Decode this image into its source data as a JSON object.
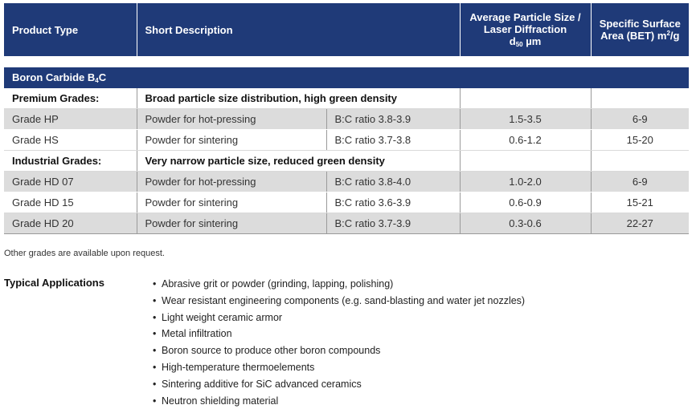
{
  "table": {
    "headers": {
      "product_type": "Product Type",
      "short_description": "Short Description",
      "avg_particle_line1": "Average Particle Size /",
      "avg_particle_line2": "Laser Diffraction",
      "avg_particle_d": "d",
      "avg_particle_sub": "50",
      "avg_particle_unit": " µm",
      "ssa_line1": "Specific Surface",
      "ssa_line2_prefix": "Area (BET) m",
      "ssa_sup": "2",
      "ssa_suffix": "/g"
    },
    "section": {
      "prefix": "Boron Carbide B",
      "sub": "4",
      "suffix": "C"
    },
    "groups": [
      {
        "name": "Premium Grades:",
        "description": "Broad particle size distribution, high green density",
        "rows": [
          {
            "grade": "Grade HP",
            "description": "Powder for hot-pressing",
            "ratio": "B:C ratio 3.8-3.9",
            "particle_size": "1.5-3.5",
            "surface_area": "6-9"
          },
          {
            "grade": "Grade HS",
            "description": "Powder for sintering",
            "ratio": "B:C ratio 3.7-3.8",
            "particle_size": "0.6-1.2",
            "surface_area": "15-20"
          }
        ]
      },
      {
        "name": "Industrial Grades:",
        "description": "Very narrow particle size, reduced green density",
        "rows": [
          {
            "grade": "Grade HD 07",
            "description": "Powder for hot-pressing",
            "ratio": "B:C ratio 3.8-4.0",
            "particle_size": "1.0-2.0",
            "surface_area": "6-9"
          },
          {
            "grade": "Grade HD 15",
            "description": "Powder for sintering",
            "ratio": "B:C ratio 3.6-3.9",
            "particle_size": "0.6-0.9",
            "surface_area": "15-21"
          },
          {
            "grade": "Grade HD 20",
            "description": "Powder for sintering",
            "ratio": "B:C ratio 3.7-3.9",
            "particle_size": "0.3-0.6",
            "surface_area": "22-27"
          }
        ]
      }
    ]
  },
  "note": "Other grades are available upon request.",
  "applications": {
    "title": "Typical Applications",
    "bullet": "•",
    "items": [
      "Abrasive grit or powder (grinding, lapping, polishing)",
      "Wear resistant engineering components (e.g. sand-blasting and water jet nozzles)",
      "Light weight ceramic armor",
      "Metal infiltration",
      "Boron source to produce other boron compounds",
      "High-temperature thermoelements",
      "Sintering additive for SiC advanced ceramics",
      "Neutron shielding material"
    ]
  },
  "colors": {
    "header_blue": "#1f3a78",
    "row_shade": "#dcdcdc"
  }
}
